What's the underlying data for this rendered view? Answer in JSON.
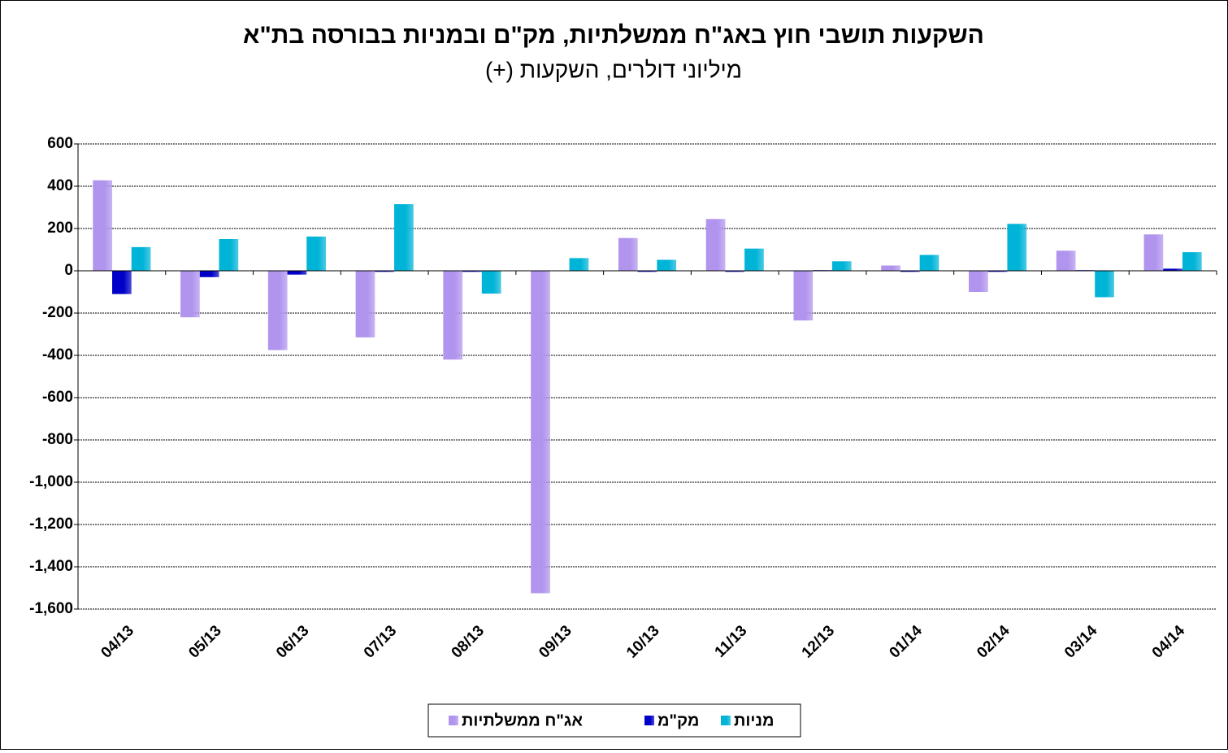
{
  "chart_data": {
    "type": "bar",
    "title": "השקעות תושבי חוץ באג\"ח ממשלתיות, מק\"ם ובמניות בבורסה בת\"א",
    "subtitle": "מיליוני דולרים, השקעות (+)",
    "categories": [
      "04/13",
      "05/13",
      "06/13",
      "07/13",
      "08/13",
      "09/13",
      "10/13",
      "11/13",
      "12/13",
      "01/14",
      "02/14",
      "03/14",
      "04/14"
    ],
    "series": [
      {
        "name": "אג\"ח ממשלתיות",
        "color": "#b094ee",
        "values": [
          428,
          -220,
          -375,
          -315,
          -420,
          -1525,
          155,
          245,
          -235,
          25,
          -100,
          95,
          172
        ]
      },
      {
        "name": "מק\"מ",
        "color": "#0000c8",
        "values": [
          -110,
          -30,
          -18,
          -5,
          -5,
          0,
          -5,
          -5,
          3,
          -5,
          -5,
          3,
          10
        ]
      },
      {
        "name": "מניות",
        "color": "#00b4d8",
        "values": [
          112,
          150,
          162,
          315,
          -108,
          60,
          52,
          105,
          45,
          75,
          222,
          -125,
          88
        ]
      }
    ],
    "ylim": [
      -1600,
      600
    ],
    "yticks": [
      {
        "value": -1600,
        "label": "-1,600"
      },
      {
        "value": -1400,
        "label": "-1,400"
      },
      {
        "value": -1200,
        "label": "-1,200"
      },
      {
        "value": -1000,
        "label": "-1,000"
      },
      -800,
      -600,
      -400,
      -200,
      0,
      200,
      400,
      600
    ],
    "grid": true
  }
}
